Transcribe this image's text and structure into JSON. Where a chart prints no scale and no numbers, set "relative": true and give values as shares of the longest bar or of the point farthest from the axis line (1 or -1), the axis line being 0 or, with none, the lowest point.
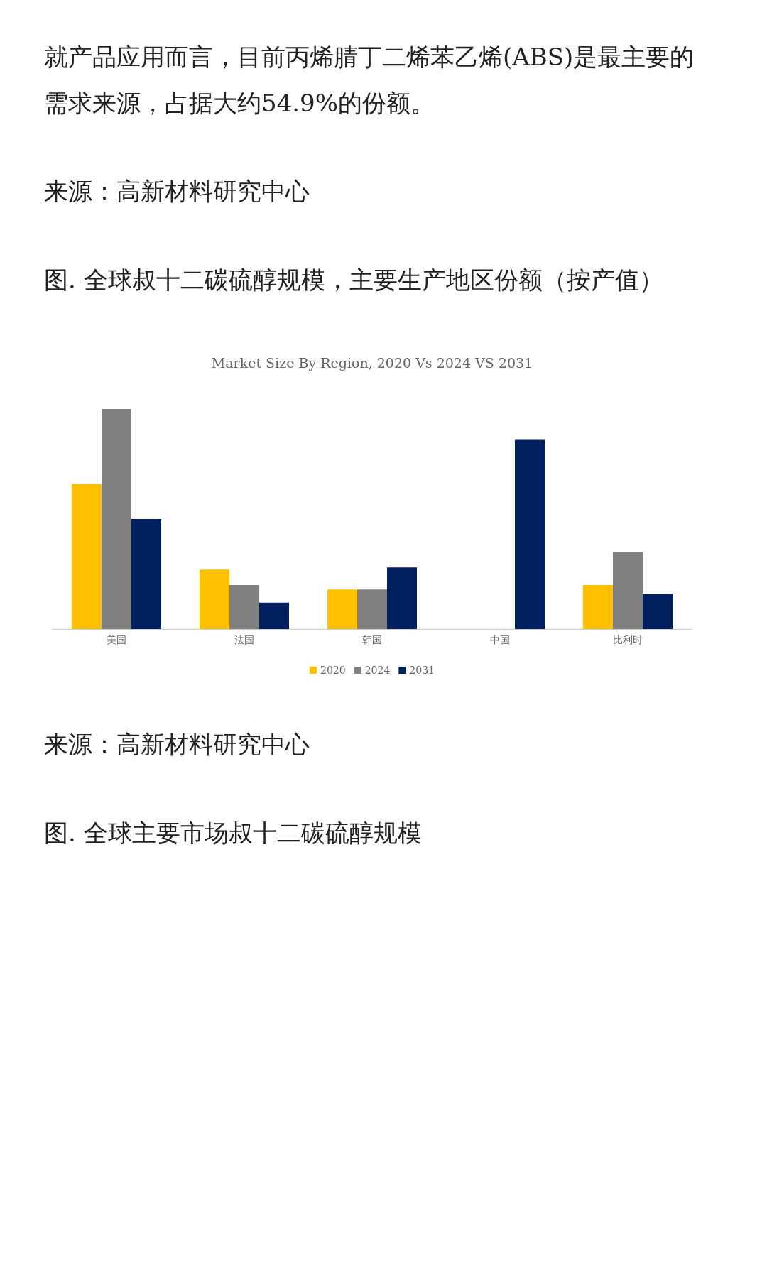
{
  "chart_data": {
    "type": "bar",
    "title": "Market Size By Region, 2020 Vs 2024 VS 2031",
    "annotations": [
      "就产品应用而言，目前丙烯腈丁二烯苯乙烯(ABS)是最主要的需求来源，占据大约54.9%的份额。",
      "来源：高新材料研究中心",
      "图. 全球叔十二碳硫醇规模，主要生产地区份额（按产值）",
      "来源：高新材料研究中心",
      "图. 全球主要市场叔十二碳硫醇规模"
    ],
    "categories": [
      "美国",
      "法国",
      "韩国",
      "中国",
      "比利时"
    ],
    "relative": true,
    "legend": "bottom",
    "grid": false,
    "series": [
      {
        "name": "2020",
        "color": "#ffc000",
        "values": [
          0.66,
          0.27,
          0.18,
          0,
          0.2
        ]
      },
      {
        "name": "2024",
        "color": "#808080",
        "values": [
          1,
          0.2,
          0.18,
          0,
          0.35
        ]
      },
      {
        "name": "2031",
        "color": "#002060",
        "values": [
          0.5,
          0.12,
          0.28,
          0.86,
          0.16
        ]
      }
    ]
  }
}
